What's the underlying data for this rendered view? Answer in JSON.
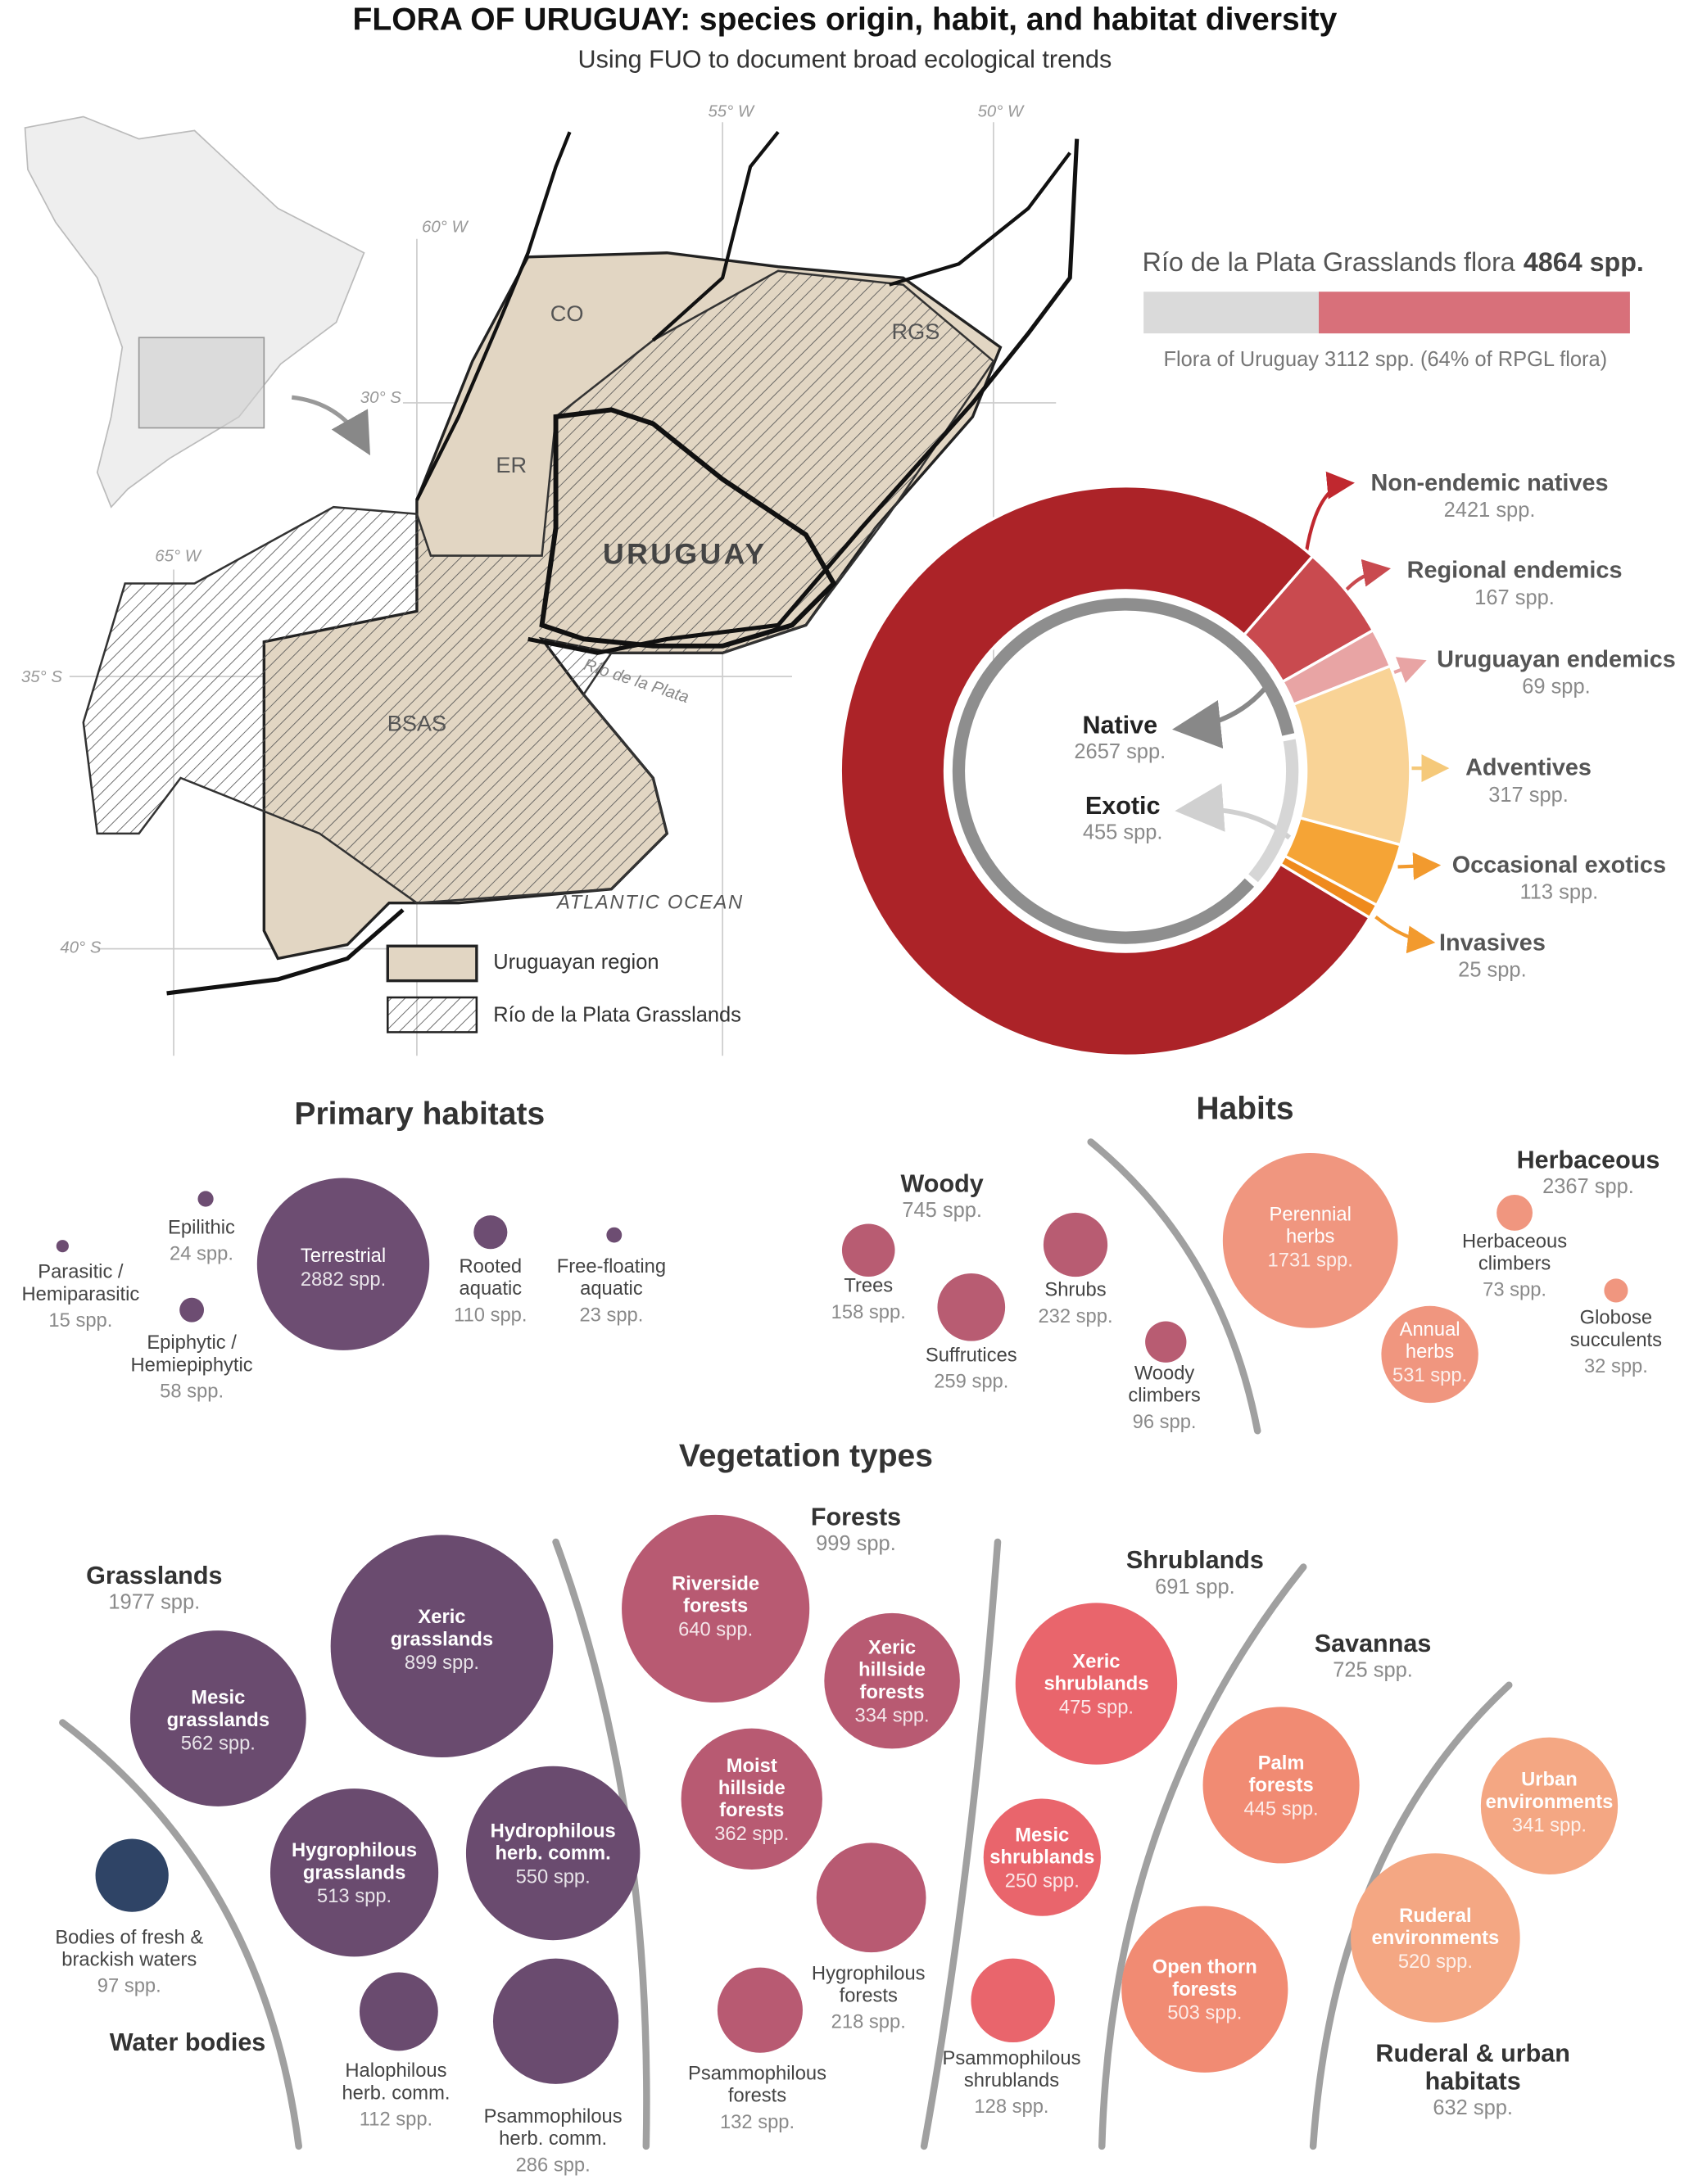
{
  "header": {
    "title": "FLORA OF URUGUAY: species origin, habit, and habitat diversity",
    "subtitle": "Using FUO to document broad ecological trends"
  },
  "map": {
    "grid_labels": [
      "55° W",
      "50° W",
      "60° W",
      "65° W",
      "30° S",
      "35° S",
      "40° S"
    ],
    "regions": [
      "CO",
      "RGS",
      "ER",
      "URUGUAY",
      "BSAS"
    ],
    "river": "Río de la Plata",
    "ocean": "ATLANTIC OCEAN",
    "legend": [
      "Uruguayan region",
      "Río de la Plata Grasslands"
    ]
  },
  "rpgl": {
    "title": "Río de la Plata Grasslands flora",
    "total": {
      "value": 4864,
      "label": "4864 spp.",
      "color": "#dadada"
    },
    "uruguay": {
      "value": 3112,
      "label": "Flora of Uruguay 3112 spp. (64% of RPGL flora)",
      "color": "#d8707a"
    }
  },
  "origin": {
    "inner": [
      {
        "name": "Native",
        "value": 2657,
        "label": "2657 spp.",
        "color": "#8e8e8e"
      },
      {
        "name": "Exotic",
        "value": 455,
        "label": "455 spp.",
        "color": "#d6d6d6"
      }
    ],
    "outer": [
      {
        "name": "Non-endemic natives",
        "value": 2421,
        "label": "2421 spp.",
        "color": "#ac2328"
      },
      {
        "name": "Regional endemics",
        "value": 167,
        "label": "167 spp.",
        "color": "#c94a4f"
      },
      {
        "name": "Uruguayan endemics",
        "value": 69,
        "label": "69 spp.",
        "color": "#e8a4a4"
      },
      {
        "name": "Adventives",
        "value": 317,
        "label": "317 spp.",
        "color": "#f9d396"
      },
      {
        "name": "Occasional exotics",
        "value": 113,
        "label": "113 spp.",
        "color": "#f5a436"
      },
      {
        "name": "Invasives",
        "value": 25,
        "label": "25 spp.",
        "color": "#ef8a1c"
      }
    ]
  },
  "habitats": {
    "title": "Primary habitats",
    "color": "#6d4d72",
    "items": [
      {
        "name": "Parasitic / Hemiparasitic",
        "value": 15,
        "label": "15 spp."
      },
      {
        "name": "Epilithic",
        "value": 24,
        "label": "24 spp."
      },
      {
        "name": "Epiphytic / Hemiepiphytic",
        "value": 58,
        "label": "58 spp."
      },
      {
        "name": "Terrestrial",
        "value": 2882,
        "label": "2882 spp."
      },
      {
        "name": "Rooted aquatic",
        "value": 110,
        "label": "110 spp."
      },
      {
        "name": "Free-floating aquatic",
        "value": 23,
        "label": "23 spp."
      }
    ]
  },
  "habits": {
    "title": "Habits",
    "groups": [
      {
        "name": "Woody",
        "count": "745 spp.",
        "color": "#b85c72",
        "items": [
          {
            "name": "Trees",
            "value": 158,
            "label": "158 spp."
          },
          {
            "name": "Suffrutices",
            "value": 259,
            "label": "259 spp."
          },
          {
            "name": "Shrubs",
            "value": 232,
            "label": "232 spp."
          },
          {
            "name": "Woody climbers",
            "value": 96,
            "label": "96 spp."
          }
        ]
      },
      {
        "name": "Herbaceous",
        "count": "2367 spp.",
        "color": "#f0967f",
        "items": [
          {
            "name": "Perennial herbs",
            "value": 1731,
            "label": "1731 spp."
          },
          {
            "name": "Annual herbs",
            "value": 531,
            "label": "531 spp."
          },
          {
            "name": "Herbaceous climbers",
            "value": 73,
            "label": "73 spp."
          },
          {
            "name": "Globose succulents",
            "value": 32,
            "label": "32 spp."
          }
        ]
      }
    ]
  },
  "vegetation": {
    "title": "Vegetation types",
    "groups": [
      {
        "name": "Grasslands",
        "count": "1977 spp.",
        "color": "#6a4b6f",
        "items": [
          {
            "name": "Xeric grasslands",
            "value": 899,
            "label": "899 spp."
          },
          {
            "name": "Mesic grasslands",
            "value": 562,
            "label": "562 spp."
          },
          {
            "name": "Hygrophilous grasslands",
            "value": 513,
            "label": "513 spp."
          },
          {
            "name": "Hydrophilous herb. comm.",
            "value": 550,
            "label": "550 spp."
          },
          {
            "name": "Halophilous herb. comm.",
            "value": 112,
            "label": "112 spp."
          },
          {
            "name": "Psammophilous herb. comm.",
            "value": 286,
            "label": "286 spp."
          }
        ]
      },
      {
        "name": "Water bodies",
        "color": "#2f4466",
        "items": [
          {
            "name": "Bodies of fresh & brackish waters",
            "value": 97,
            "label": "97 spp."
          }
        ]
      },
      {
        "name": "Forests",
        "count": "999 spp.",
        "color": "#b85a72",
        "items": [
          {
            "name": "Riverside forests",
            "value": 640,
            "label": "640 spp."
          },
          {
            "name": "Xeric hillside forests",
            "value": 334,
            "label": "334 spp."
          },
          {
            "name": "Moist hillside forests",
            "value": 362,
            "label": "362 spp."
          },
          {
            "name": "Hygrophilous forests",
            "value": 218,
            "label": "218 spp."
          },
          {
            "name": "Psammophilous forests",
            "value": 132,
            "label": "132 spp."
          }
        ]
      },
      {
        "name": "Shrublands",
        "count": "691 spp.",
        "color": "#e9656c",
        "items": [
          {
            "name": "Xeric shrublands",
            "value": 475,
            "label": "475 spp."
          },
          {
            "name": "Mesic shrublands",
            "value": 250,
            "label": "250 spp."
          },
          {
            "name": "Psammophilous shrublands",
            "value": 128,
            "label": "128 spp."
          }
        ]
      },
      {
        "name": "Savannas",
        "count": "725 spp.",
        "color": "#f18b73",
        "items": [
          {
            "name": "Palm forests",
            "value": 445,
            "label": "445 spp."
          },
          {
            "name": "Open thorn forests",
            "value": 503,
            "label": "503 spp."
          }
        ]
      },
      {
        "name": "Ruderal & urban habitats",
        "count": "632 spp.",
        "color": "#f4a783",
        "items": [
          {
            "name": "Urban environments",
            "value": 341,
            "label": "341 spp."
          },
          {
            "name": "Ruderal environments",
            "value": 520,
            "label": "520 spp."
          }
        ]
      }
    ]
  }
}
